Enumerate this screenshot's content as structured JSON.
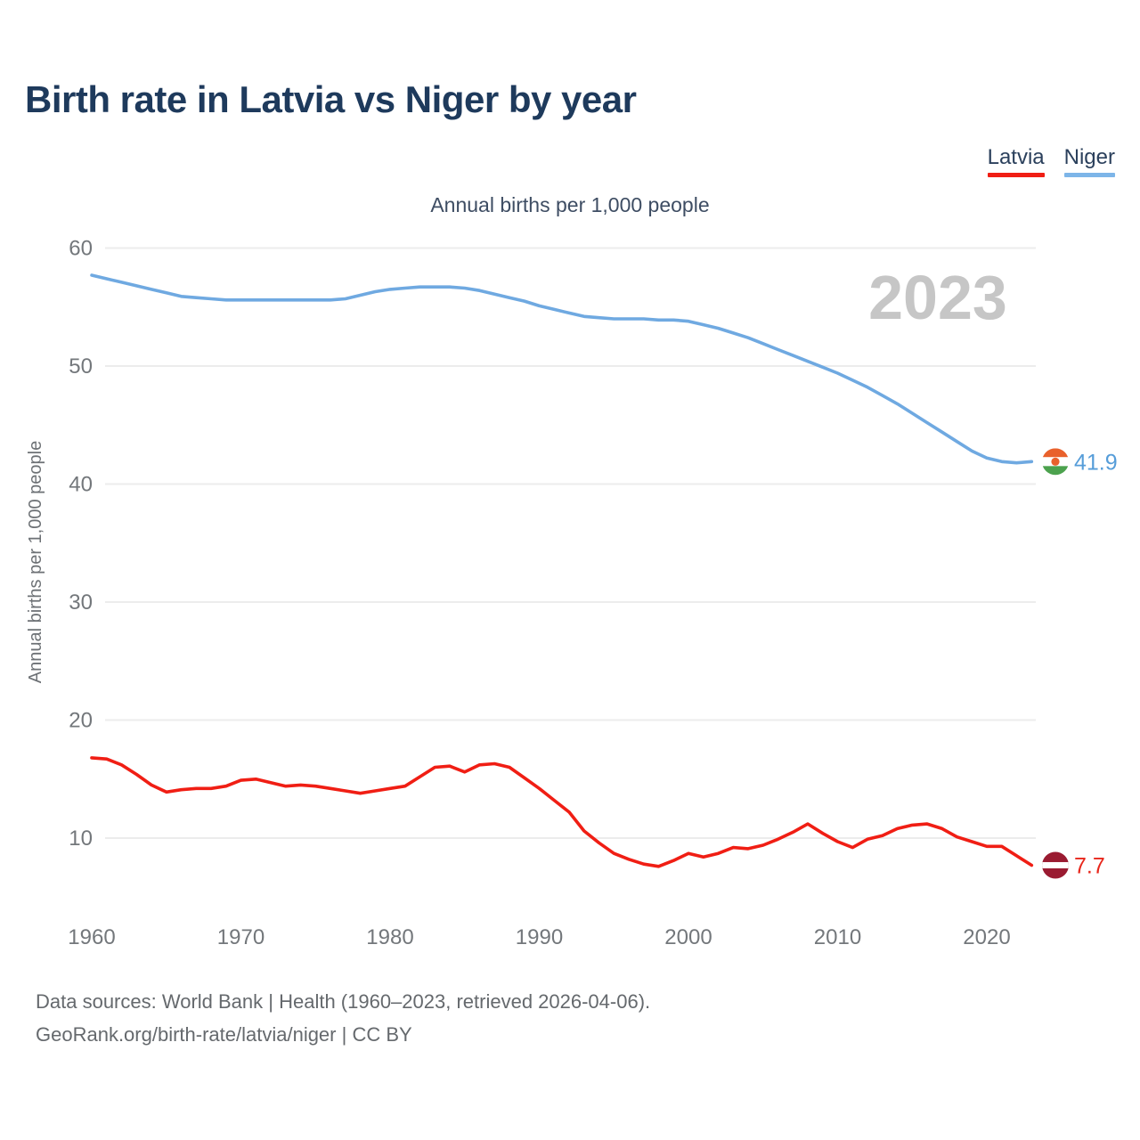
{
  "page": {
    "title": "Birth rate in Latvia vs Niger by year",
    "subtitle": "Annual births per 1,000 people",
    "y_axis_label": "Annual births per 1,000 people",
    "watermark_year": "2023"
  },
  "legend": [
    {
      "label": "Latvia",
      "color": "#f01e14"
    },
    {
      "label": "Niger",
      "color": "#7db5e8"
    }
  ],
  "end_labels": {
    "niger_value": "41.9",
    "latvia_value": "7.7"
  },
  "source": {
    "line1": "Data sources: World Bank | Health (1960–2023, retrieved 2026-04-06).",
    "line2": "GeoRank.org/birth-rate/latvia/niger | CC BY"
  },
  "colors": {
    "title": "#1e3a5c",
    "tick_text": "#73777b",
    "grid": "#ececec",
    "watermark": "#c6c6c6",
    "latvia_line": "#f01e14",
    "latvia_label": "#e8261b",
    "niger_line": "#6fa9e1",
    "niger_label": "#569dd9"
  },
  "flags": {
    "niger": {
      "name": "niger-flag-icon",
      "orange": "#e9612c",
      "white": "#ffffff",
      "green": "#4ca24e"
    },
    "latvia": {
      "name": "latvia-flag-icon",
      "maroon": "#9a1b31",
      "white": "#ffffff"
    }
  },
  "chart_data": {
    "type": "line",
    "title": "Birth rate in Latvia vs Niger by year",
    "ylabel": "Annual births per 1,000 people",
    "xlabel": "",
    "grid": true,
    "legend_position": "top-right",
    "years": {
      "start": 1960,
      "end": 2023,
      "step": 1
    },
    "xticks": [
      1960,
      1970,
      1980,
      1990,
      2000,
      2010,
      2020
    ],
    "yticks": [
      10,
      20,
      30,
      40,
      50,
      60
    ],
    "ylim": [
      4.5,
      61
    ],
    "xlim": [
      1960,
      2023
    ],
    "series": [
      {
        "name": "Niger",
        "color": "#6fa9e1",
        "end_label": "41.9",
        "values": [
          57.7,
          57.4,
          57.1,
          56.8,
          56.5,
          56.2,
          55.9,
          55.8,
          55.7,
          55.6,
          55.6,
          55.6,
          55.6,
          55.6,
          55.6,
          55.6,
          55.6,
          55.7,
          56.0,
          56.3,
          56.5,
          56.6,
          56.7,
          56.7,
          56.7,
          56.6,
          56.4,
          56.1,
          55.8,
          55.5,
          55.1,
          54.8,
          54.5,
          54.2,
          54.1,
          54.0,
          54.0,
          54.0,
          53.9,
          53.9,
          53.8,
          53.5,
          53.2,
          52.8,
          52.4,
          51.9,
          51.4,
          50.9,
          50.4,
          49.9,
          49.4,
          48.8,
          48.2,
          47.5,
          46.8,
          46.0,
          45.2,
          44.4,
          43.6,
          42.8,
          42.2,
          41.9,
          41.8,
          41.9
        ]
      },
      {
        "name": "Latvia",
        "color": "#f01e14",
        "end_label": "7.7",
        "values": [
          16.8,
          16.7,
          16.2,
          15.4,
          14.5,
          13.9,
          14.1,
          14.2,
          14.2,
          14.4,
          14.9,
          15.0,
          14.7,
          14.4,
          14.5,
          14.4,
          14.2,
          14.0,
          13.8,
          14.0,
          14.2,
          14.4,
          15.2,
          16.0,
          16.1,
          15.6,
          16.2,
          16.3,
          16.0,
          15.1,
          14.2,
          13.2,
          12.2,
          10.6,
          9.6,
          8.7,
          8.2,
          7.8,
          7.6,
          8.1,
          8.7,
          8.4,
          8.7,
          9.2,
          9.1,
          9.4,
          9.9,
          10.5,
          11.2,
          10.4,
          9.7,
          9.2,
          9.9,
          10.2,
          10.8,
          11.1,
          11.2,
          10.8,
          10.1,
          9.7,
          9.3,
          9.3,
          8.5,
          7.7
        ]
      }
    ]
  }
}
